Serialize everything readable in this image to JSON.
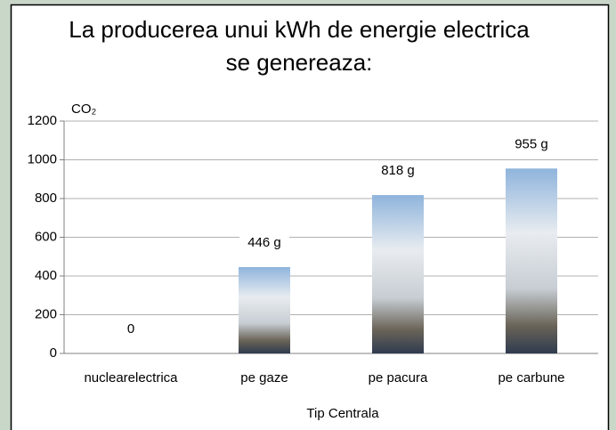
{
  "chart_data": {
    "type": "bar",
    "title": [
      "La producerea unui kWh de energie electrica",
      "se genereaza:"
    ],
    "y_label": "CO₂",
    "x_label": "Tip Centrala",
    "categories": [
      "nuclearelectrica",
      "pe gaze",
      "pe pacura",
      "pe carbune"
    ],
    "values": [
      0,
      446,
      818,
      955
    ],
    "value_labels": [
      "0",
      "446 g",
      "818 g",
      "955 g"
    ],
    "color": "#8fb4dc",
    "ylim": [
      0,
      1200
    ],
    "yticks": [
      0,
      200,
      400,
      600,
      800,
      1000,
      1200
    ],
    "grid": true
  }
}
